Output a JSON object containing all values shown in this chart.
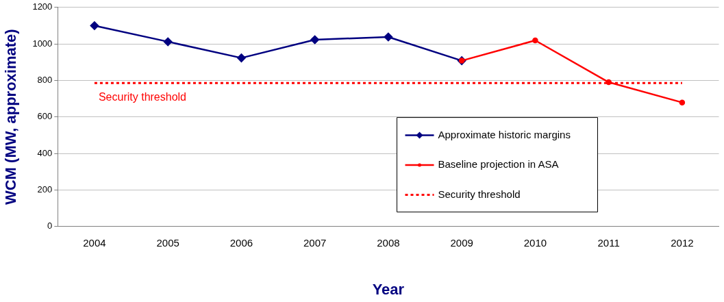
{
  "chart_data": {
    "type": "line",
    "xlabel": "Year",
    "ylabel": "WCM (MW, approximate)",
    "categories": [
      "2004",
      "2005",
      "2006",
      "2007",
      "2008",
      "2009",
      "2010",
      "2011",
      "2012"
    ],
    "series": [
      {
        "name": "Approximate historic margins",
        "color": "#000080",
        "marker": "diamond",
        "values": [
          1100,
          1012,
          923,
          1023,
          1038,
          908,
          null,
          null,
          null
        ]
      },
      {
        "name": "Baseline projection in ASA",
        "color": "#ff0000",
        "marker": "circle",
        "values": [
          null,
          null,
          null,
          null,
          null,
          908,
          1019,
          790,
          679
        ]
      }
    ],
    "ref_lines": [
      {
        "axis": "y",
        "value": 786,
        "label": "Security threshold",
        "color": "#ff0000",
        "line_style": "dotted"
      }
    ],
    "ylim": [
      0,
      1200
    ],
    "yticks": [
      0,
      200,
      400,
      600,
      800,
      1000,
      1200
    ],
    "grid": "y",
    "legend": "bottom right"
  }
}
